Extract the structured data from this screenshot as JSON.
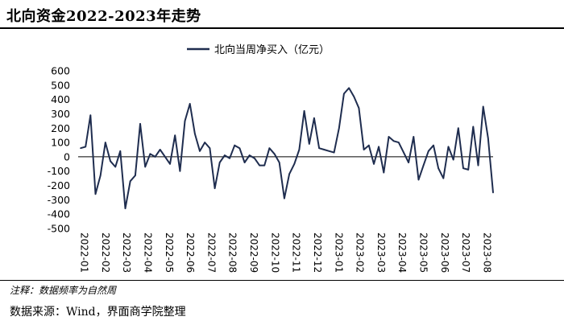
{
  "header": {
    "title": "北向资金2022-2023年走势"
  },
  "footer": {
    "note": "注释：数据频率为自然周",
    "source": "数据来源：Wind，界面商学院整理"
  },
  "colors": {
    "line": "#1f2d4f",
    "zero_line": "#000000"
  },
  "chart_data": {
    "type": "line",
    "title": "",
    "xlabel": "",
    "ylabel": "",
    "ylim": [
      -500,
      600
    ],
    "yticks": [
      600,
      500,
      400,
      300,
      200,
      100,
      0,
      -100,
      -200,
      -300,
      -400,
      -500
    ],
    "grid": false,
    "legend_placement": "top-center",
    "xtick_labels": [
      "2022-01",
      "2022-02",
      "2022-03",
      "2022-04",
      "2022-05",
      "2022-06",
      "2022-07",
      "2022-08",
      "2022-09",
      "2022-10",
      "2022-11",
      "2022-12",
      "2023-01",
      "2023-02",
      "2023-03",
      "2023-04",
      "2023-05",
      "2023-06",
      "2023-07",
      "2023-08"
    ],
    "series": [
      {
        "name": "北向当周净买入（亿元）",
        "values": [
          60,
          70,
          290,
          -260,
          -130,
          100,
          -30,
          -70,
          40,
          -360,
          -170,
          -130,
          230,
          -70,
          20,
          0,
          50,
          0,
          -50,
          150,
          -100,
          250,
          370,
          160,
          40,
          100,
          60,
          -220,
          -40,
          10,
          -10,
          80,
          60,
          -40,
          10,
          -10,
          -60,
          -60,
          60,
          20,
          -40,
          -290,
          -120,
          -50,
          50,
          320,
          90,
          270,
          60,
          50,
          40,
          30,
          200,
          440,
          480,
          420,
          340,
          50,
          80,
          -50,
          70,
          -110,
          140,
          110,
          100,
          30,
          -40,
          140,
          -160,
          -60,
          40,
          80,
          -80,
          -150,
          70,
          -20,
          200,
          -80,
          -90,
          210,
          -60,
          350,
          130,
          -250
        ]
      }
    ]
  }
}
